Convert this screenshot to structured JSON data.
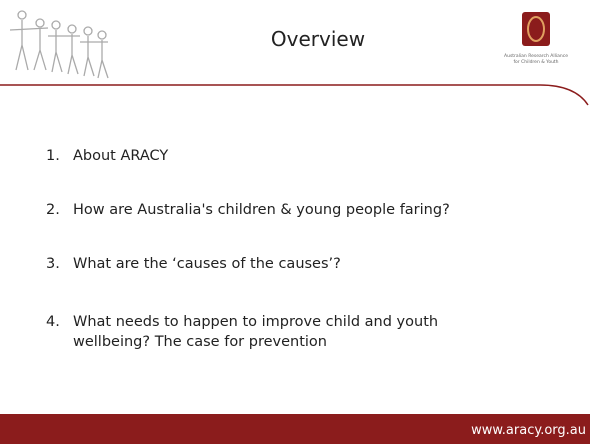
{
  "header": {
    "title": "Overview",
    "logo_text": [
      "Australian Research Alliance",
      "for Children & Youth"
    ]
  },
  "items": [
    {
      "number": "1.",
      "text": [
        "About ARACY"
      ]
    },
    {
      "number": "2.",
      "text": [
        "How are Australia's children & young people faring?"
      ]
    },
    {
      "number": "3.",
      "text": [
        "What are the ‘causes of the causes’?"
      ]
    },
    {
      "number": "4.",
      "text": [
        "What needs to happen to improve child and youth",
        "wellbeing? The case for prevention"
      ]
    }
  ],
  "footer": {
    "url": "www.aracy.org.au"
  }
}
